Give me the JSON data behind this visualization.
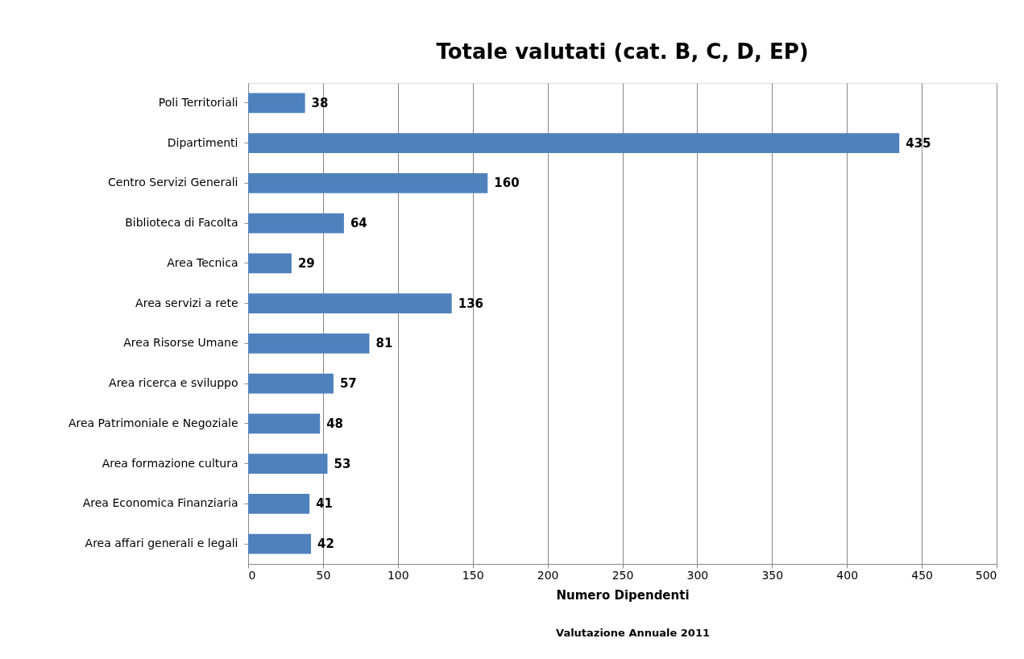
{
  "chart_data": {
    "type": "bar",
    "orientation": "horizontal",
    "title": "Totale valutati (cat. B, C, D, EP)",
    "xlabel": "Numero Dipendenti",
    "annotations": [
      "Valutazione Annuale 2011"
    ],
    "categories": [
      "Poli Territoriali",
      "Dipartimenti",
      "Centro Servizi Generali",
      "Biblioteca di Facolta",
      "Area Tecnica",
      "Area servizi a rete",
      "Area Risorse Umane",
      "Area ricerca e sviluppo",
      "Area Patrimoniale e Negoziale",
      "Area formazione cultura",
      "Area Economica Finanziaria",
      "Area affari generali e legali"
    ],
    "values": [
      38,
      435,
      160,
      64,
      29,
      136,
      81,
      57,
      48,
      53,
      41,
      42
    ],
    "color": "#4f81bd",
    "xlim": [
      0,
      500
    ],
    "xticks": [
      0,
      50,
      100,
      150,
      200,
      250,
      300,
      350,
      400,
      450,
      500
    ],
    "grid": "x",
    "data_labels": true
  }
}
